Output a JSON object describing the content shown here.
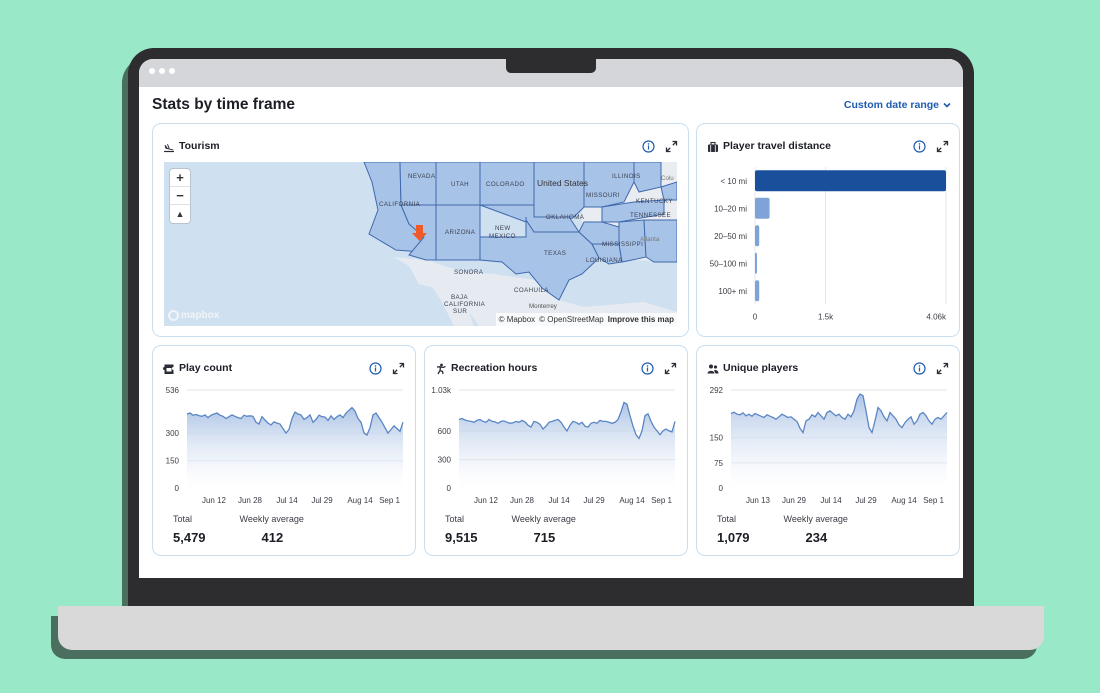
{
  "page": {
    "title": "Stats by time frame",
    "date_range_label": "Custom date range"
  },
  "colors": {
    "accent": "#1f5bb0",
    "bar_primary": "#1a4f9c",
    "bar_secondary": "#7ea3d6",
    "line": "#5b86c4",
    "area_top": "#a9c1e4",
    "state_fill": "#a8c3e8",
    "map_bg": "#cfe0f1"
  },
  "tourism": {
    "title": "Tourism",
    "icon": "plane-landing-icon",
    "map_labels": [
      "NEVADA",
      "UTAH",
      "COLORADO",
      "United States",
      "MISSOURI",
      "ILLINOIS",
      "CALIFORNIA",
      "ARIZONA",
      "NEW",
      "MEXICO",
      "OKLAHOMA",
      "TENNESSEE",
      "KENTUCKY",
      "TEXAS",
      "MISSISSIPPI",
      "LOUISIANA",
      "SONORA",
      "COAHUILA",
      "BAJA",
      "CALIFORNIA",
      "SUR",
      "Monterrey",
      "Atlanta",
      "Colu"
    ],
    "attribution": {
      "mapbox": "© Mapbox",
      "osm": "© OpenStreetMap",
      "improve": "Improve this map"
    },
    "logo_text": "mapbox",
    "zoom": {
      "in": "+",
      "out": "−",
      "compass": "▲"
    }
  },
  "travel": {
    "title": "Player travel distance",
    "icon": "suitcase-icon",
    "chart_data": {
      "type": "bar",
      "orientation": "horizontal",
      "categories": [
        "< 10 mi",
        "10–20 mi",
        "20–50 mi",
        "50–100 mi",
        "100+ mi"
      ],
      "values": [
        4060,
        310,
        90,
        40,
        90
      ],
      "xlim": [
        0,
        4060
      ],
      "xticks": [
        "0",
        "1.5k",
        "4.06k"
      ],
      "xtick_values": [
        0,
        1500,
        4060
      ]
    }
  },
  "play_count": {
    "title": "Play count",
    "icon": "ticket-icon",
    "total_label": "Total",
    "total": "5,479",
    "avg_label": "Weekly average",
    "avg": "412",
    "chart_data": {
      "type": "area",
      "ylim": [
        0,
        536
      ],
      "yticks": [
        "536",
        "300",
        "150",
        "0"
      ],
      "ytick_values": [
        536,
        300,
        150,
        0
      ],
      "xticks": [
        "Jun 12",
        "Jun 28",
        "Jul 14",
        "Jul 29",
        "Aug 14",
        "Sep 1"
      ],
      "values": [
        405,
        410,
        398,
        402,
        396,
        392,
        400,
        385,
        398,
        405,
        410,
        398,
        392,
        380,
        390,
        400,
        392,
        385,
        380,
        398,
        392,
        395,
        392,
        360,
        350,
        390,
        372,
        355,
        345,
        362,
        355,
        350,
        325,
        300,
        320,
        380,
        415,
        405,
        400,
        375,
        385,
        400,
        360,
        375,
        398,
        390,
        388,
        370,
        395,
        375,
        390,
        400,
        385,
        410,
        425,
        440,
        420,
        380,
        360,
        300,
        290,
        330,
        400,
        410,
        385,
        360,
        330,
        300,
        320,
        340,
        325,
        310,
        360
      ]
    }
  },
  "recreation": {
    "title": "Recreation hours",
    "icon": "person-activity-icon",
    "total_label": "Total",
    "total": "9,515",
    "avg_label": "Weekly average",
    "avg": "715",
    "chart_data": {
      "type": "area",
      "ylim": [
        0,
        1030
      ],
      "yticks": [
        "1.03k",
        "600",
        "300",
        "0"
      ],
      "ytick_values": [
        1030,
        600,
        300,
        0
      ],
      "xticks": [
        "Jun 12",
        "Jun 28",
        "Jul 14",
        "Jul 29",
        "Aug 14",
        "Sep 1"
      ],
      "values": [
        720,
        730,
        715,
        705,
        700,
        690,
        710,
        720,
        700,
        690,
        720,
        700,
        695,
        680,
        700,
        705,
        690,
        680,
        685,
        700,
        690,
        710,
        695,
        660,
        640,
        700,
        690,
        670,
        620,
        650,
        690,
        700,
        710,
        720,
        690,
        640,
        600,
        660,
        700,
        690,
        670,
        690,
        650,
        640,
        680,
        690,
        680,
        710,
        700,
        700,
        690,
        680,
        690,
        720,
        800,
        900,
        880,
        760,
        650,
        560,
        520,
        600,
        760,
        780,
        700,
        640,
        600,
        560,
        600,
        620,
        600,
        590,
        700
      ]
    }
  },
  "unique": {
    "title": "Unique players",
    "icon": "people-icon",
    "total_label": "Total",
    "total": "1,079",
    "avg_label": "Weekly average",
    "avg": "234",
    "chart_data": {
      "type": "area",
      "ylim": [
        0,
        292
      ],
      "yticks": [
        "292",
        "150",
        "75",
        "0"
      ],
      "ytick_values": [
        292,
        150,
        75,
        0
      ],
      "xticks": [
        "Jun 13",
        "Jun 29",
        "Jul 14",
        "Jul 29",
        "Aug 14",
        "Sep 1"
      ],
      "values": [
        222,
        226,
        220,
        218,
        224,
        215,
        220,
        214,
        222,
        218,
        214,
        210,
        218,
        214,
        210,
        205,
        212,
        220,
        215,
        210,
        212,
        205,
        198,
        178,
        165,
        200,
        205,
        218,
        212,
        225,
        215,
        205,
        225,
        230,
        222,
        215,
        220,
        210,
        205,
        220,
        212,
        230,
        265,
        280,
        275,
        230,
        180,
        165,
        200,
        240,
        230,
        212,
        200,
        225,
        215,
        205,
        188,
        180,
        195,
        205,
        212,
        190,
        200,
        220,
        225,
        215,
        200,
        190,
        205,
        210,
        205,
        215,
        225
      ]
    }
  }
}
